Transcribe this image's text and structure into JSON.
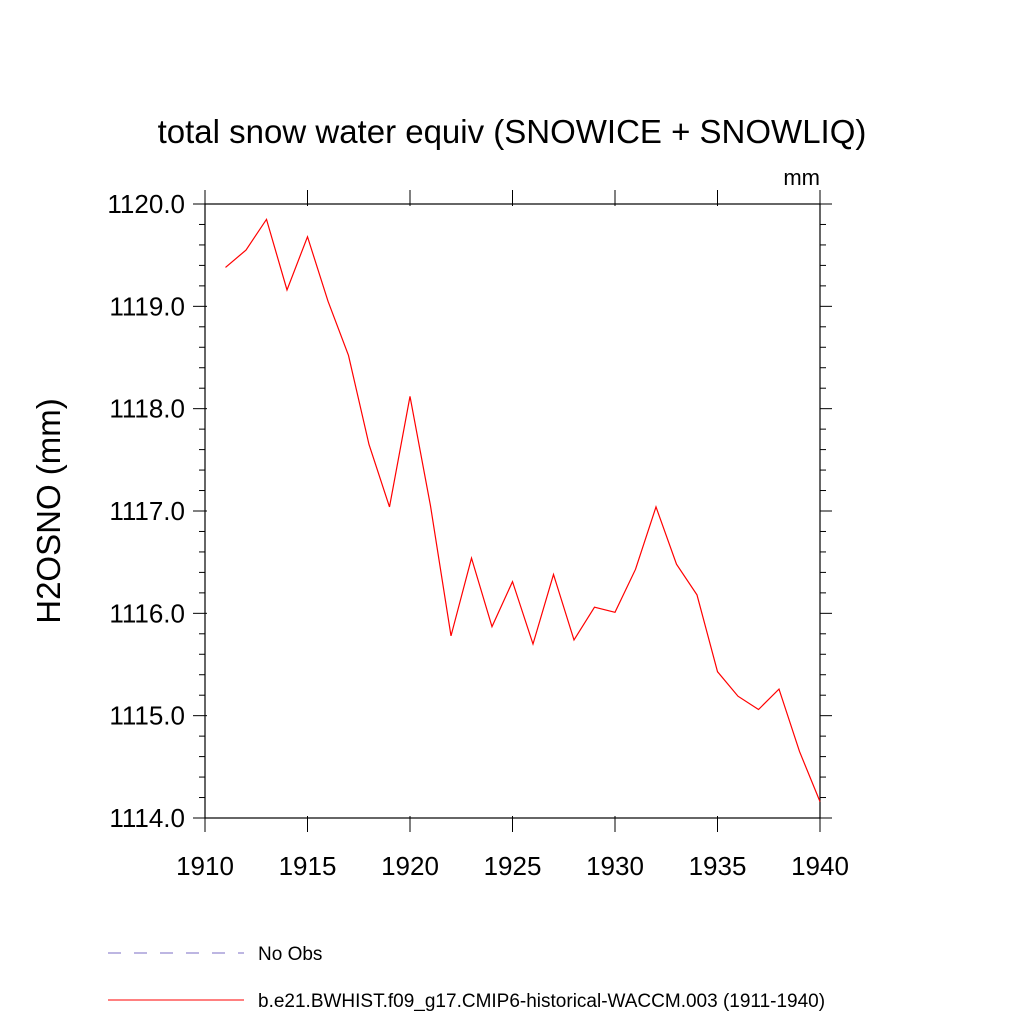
{
  "chart_data": {
    "type": "line",
    "title": "total snow water equiv (SNOWICE + SNOWLIQ)",
    "units_label": "mm",
    "ylabel": "H2OSNO  (mm)",
    "xlabel": "",
    "xlim": [
      1910,
      1940
    ],
    "ylim": [
      1114.0,
      1120.0
    ],
    "x_ticks": [
      1910,
      1915,
      1920,
      1925,
      1930,
      1935,
      1940
    ],
    "x_tick_labels": [
      "1910",
      "1915",
      "1920",
      "1925",
      "1930",
      "1935",
      "1940"
    ],
    "y_ticks": [
      1114,
      1115,
      1116,
      1117,
      1118,
      1119,
      1120
    ],
    "y_tick_labels": [
      "1114.0",
      "1115.0",
      "1116.0",
      "1117.0",
      "1118.0",
      "1119.0",
      "1120.0"
    ],
    "grid": false,
    "legend_position": "bottom",
    "series": [
      {
        "name": "b.e21.BWHIST.f09_g17.CMIP6-historical-WACCM.003 (1911-1940)",
        "color": "#ff0000",
        "style": "solid",
        "x": [
          1911,
          1912,
          1913,
          1914,
          1915,
          1916,
          1917,
          1918,
          1919,
          1920,
          1921,
          1922,
          1923,
          1924,
          1925,
          1926,
          1927,
          1928,
          1929,
          1930,
          1931,
          1932,
          1933,
          1934,
          1935,
          1936,
          1937,
          1938,
          1939,
          1940
        ],
        "y": [
          1119.38,
          1119.55,
          1119.85,
          1119.16,
          1119.68,
          1119.05,
          1118.52,
          1117.65,
          1117.04,
          1118.12,
          1117.05,
          1115.78,
          1116.54,
          1115.87,
          1116.31,
          1115.7,
          1116.38,
          1115.74,
          1116.06,
          1116.01,
          1116.43,
          1117.04,
          1116.48,
          1116.18,
          1115.43,
          1115.19,
          1115.06,
          1115.26,
          1114.65,
          1114.16
        ]
      }
    ],
    "legend": [
      {
        "label": "No Obs",
        "color": "#7b6cc4",
        "style": "dashed"
      },
      {
        "label": "b.e21.BWHIST.f09_g17.CMIP6-historical-WACCM.003 (1911-1940)",
        "color": "#ff0000",
        "style": "solid"
      }
    ]
  }
}
